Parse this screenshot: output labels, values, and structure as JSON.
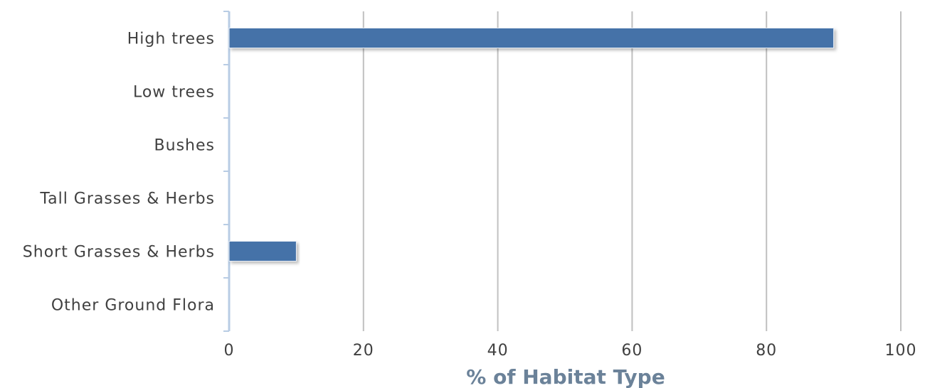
{
  "chart_data": {
    "type": "bar",
    "orientation": "horizontal",
    "categories": [
      "High trees",
      "Low trees",
      "Bushes",
      "Tall Grasses & Herbs",
      "Short Grasses & Herbs",
      "Other Ground Flora"
    ],
    "values": [
      90,
      0,
      0,
      0,
      10,
      0
    ],
    "xlabel": "% of Habitat Type",
    "ylabel": "",
    "title": "",
    "xlim": [
      0,
      100
    ],
    "xticks": [
      0,
      20,
      40,
      60,
      80,
      100
    ],
    "grid": "vertical",
    "legend": "none",
    "colors": {
      "bar": "#4472a8",
      "grid": "#c0c0c0",
      "axis": "#b8cce4"
    }
  }
}
